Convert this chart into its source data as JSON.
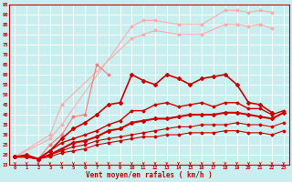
{
  "xlabel": "Vent moyen/en rafales ( km/h )",
  "xlabel_color": "#cc0000",
  "background_color": "#c8eef0",
  "grid_color": "#ffffff",
  "x_values": [
    0,
    1,
    2,
    3,
    4,
    5,
    6,
    7,
    8,
    9,
    10,
    11,
    12,
    13,
    14,
    15,
    16,
    17,
    18,
    19,
    20,
    21,
    22,
    23
  ],
  "ylim": [
    15,
    95
  ],
  "yticks": [
    15,
    20,
    25,
    30,
    35,
    40,
    45,
    50,
    55,
    60,
    65,
    70,
    75,
    80,
    85,
    90,
    95
  ],
  "series": [
    {
      "color": "#ffaaaa",
      "lw": 0.8,
      "marker": "D",
      "ms": 1.5,
      "y": [
        19,
        null,
        null,
        28,
        35,
        null,
        null,
        null,
        null,
        null,
        84,
        87,
        87,
        null,
        85,
        null,
        85,
        null,
        92,
        92,
        91,
        92,
        91,
        null
      ]
    },
    {
      "color": "#ffaaaa",
      "lw": 0.8,
      "marker": "D",
      "ms": 1.5,
      "y": [
        19,
        null,
        null,
        30,
        45,
        null,
        null,
        null,
        null,
        null,
        78,
        80,
        82,
        null,
        80,
        null,
        80,
        null,
        85,
        85,
        84,
        85,
        83,
        null
      ]
    },
    {
      "color": "#ff7777",
      "lw": 0.8,
      "marker": "D",
      "ms": 1.5,
      "y": [
        19,
        19,
        18,
        25,
        30,
        39,
        40,
        65,
        60,
        null,
        null,
        null,
        null,
        null,
        null,
        null,
        null,
        null,
        null,
        null,
        null,
        null,
        null,
        null
      ]
    },
    {
      "color": "#cc0000",
      "lw": 1.2,
      "marker": "D",
      "ms": 2,
      "y": [
        19,
        20,
        18,
        22,
        28,
        33,
        36,
        40,
        45,
        46,
        60,
        57,
        55,
        60,
        58,
        55,
        58,
        59,
        60,
        55,
        46,
        45,
        41,
        null
      ]
    },
    {
      "color": "#cc0000",
      "lw": 1.0,
      "marker": "D",
      "ms": 1.5,
      "y": [
        19,
        19,
        18,
        22,
        26,
        28,
        30,
        32,
        35,
        37,
        42,
        42,
        45,
        46,
        44,
        45,
        46,
        44,
        46,
        46,
        43,
        43,
        40,
        42
      ]
    },
    {
      "color": "#cc0000",
      "lw": 1.5,
      "marker": "D",
      "ms": 2,
      "y": [
        19,
        19,
        18,
        20,
        23,
        26,
        27,
        29,
        32,
        33,
        36,
        37,
        38,
        38,
        39,
        40,
        40,
        40,
        41,
        41,
        40,
        39,
        38,
        41
      ]
    },
    {
      "color": "#cc0000",
      "lw": 0.8,
      "marker": "D",
      "ms": 1.5,
      "y": [
        19,
        19,
        18,
        20,
        22,
        24,
        25,
        27,
        28,
        29,
        30,
        31,
        32,
        33,
        34,
        34,
        35,
        35,
        35,
        36,
        35,
        35,
        34,
        36
      ]
    },
    {
      "color": "#cc0000",
      "lw": 0.8,
      "marker": "D",
      "ms": 1.5,
      "y": [
        19,
        19,
        18,
        19,
        21,
        22,
        23,
        25,
        26,
        27,
        28,
        29,
        29,
        30,
        30,
        31,
        31,
        31,
        32,
        32,
        31,
        31,
        30,
        32
      ]
    }
  ]
}
